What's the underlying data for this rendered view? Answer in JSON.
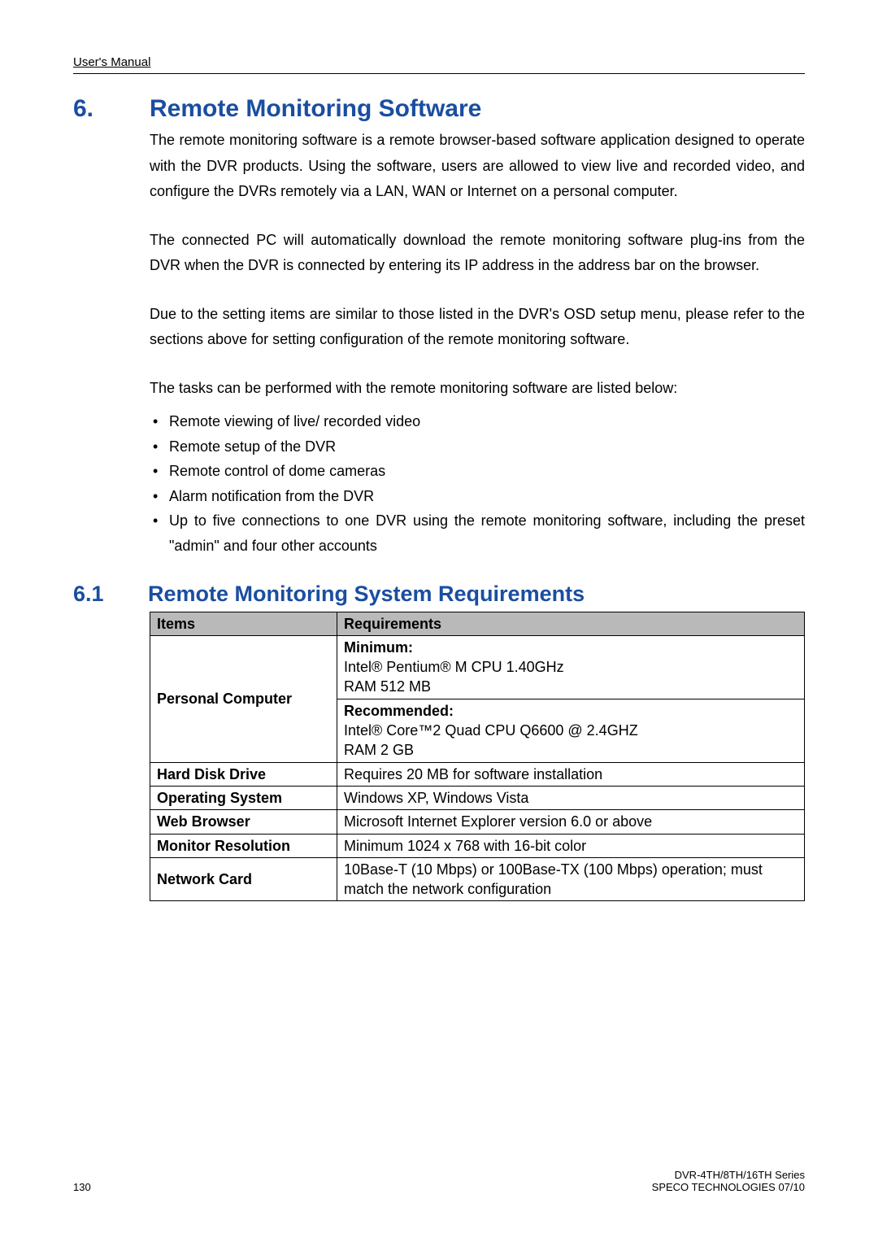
{
  "header": {
    "text": "User's Manual"
  },
  "section": {
    "num": "6.",
    "title": "Remote Monitoring Software",
    "para1": "The remote monitoring software is a remote browser-based software application designed to operate with the DVR products. Using the software, users are allowed to view live and recorded video, and configure the DVRs remotely via a LAN, WAN or Internet on a personal computer.",
    "para2": "The  connected PC will automatically download the remote monitoring software plug-ins from the DVR when the DVR is connected by entering its IP address in the address bar on the browser.",
    "para3": "Due to the setting items are similar to those listed in the DVR's OSD setup menu, please refer to the sections above for setting configuration of the remote monitoring software.",
    "para4": "The tasks can be performed with the remote monitoring software are listed below:",
    "bullets": [
      "Remote viewing of live/ recorded video",
      "Remote setup of the DVR",
      "Remote control of dome cameras",
      "Alarm notification from the DVR",
      "Up to five connections to one DVR using the remote monitoring software, including the preset \"admin\" and four other accounts"
    ]
  },
  "subsection": {
    "num": "6.1",
    "title": "Remote Monitoring System Requirements"
  },
  "table": {
    "headers": {
      "items": "Items",
      "requirements": "Requirements"
    },
    "rows": {
      "pc_label": "Personal Computer",
      "pc_min_title": "Minimum:",
      "pc_min_l1": "Intel® Pentium® M CPU 1.40GHz",
      "pc_min_l2": "RAM 512 MB",
      "pc_rec_title": "Recommended:",
      "pc_rec_l1": "Intel® Core™2 Quad CPU Q6600 @ 2.4GHZ",
      "pc_rec_l2": "RAM 2 GB",
      "hdd_label": "Hard Disk Drive",
      "hdd_req": "Requires 20 MB for software installation",
      "os_label": "Operating System",
      "os_req": "Windows XP, Windows Vista",
      "wb_label": "Web Browser",
      "wb_req": "Microsoft Internet Explorer version 6.0 or above",
      "mr_label": "Monitor Resolution",
      "mr_req": "Minimum 1024 x 768 with 16-bit color",
      "nc_label": "Network Card",
      "nc_req": "10Base-T (10 Mbps) or 100Base-TX (100 Mbps) operation; must match the network configuration"
    }
  },
  "footer": {
    "page": "130",
    "series": "DVR-4TH/8TH/16TH Series",
    "company": "SPECO TECHNOLOGIES 07/10"
  },
  "colors": {
    "heading": "#1a4ea0",
    "table_header_bg": "#b9b9b9",
    "text": "#000000",
    "background": "#ffffff"
  },
  "typography": {
    "heading_fontsize_pt": 22,
    "subheading_fontsize_pt": 20,
    "body_fontsize_pt": 13,
    "footer_fontsize_pt": 10,
    "font_family": "Arial"
  }
}
